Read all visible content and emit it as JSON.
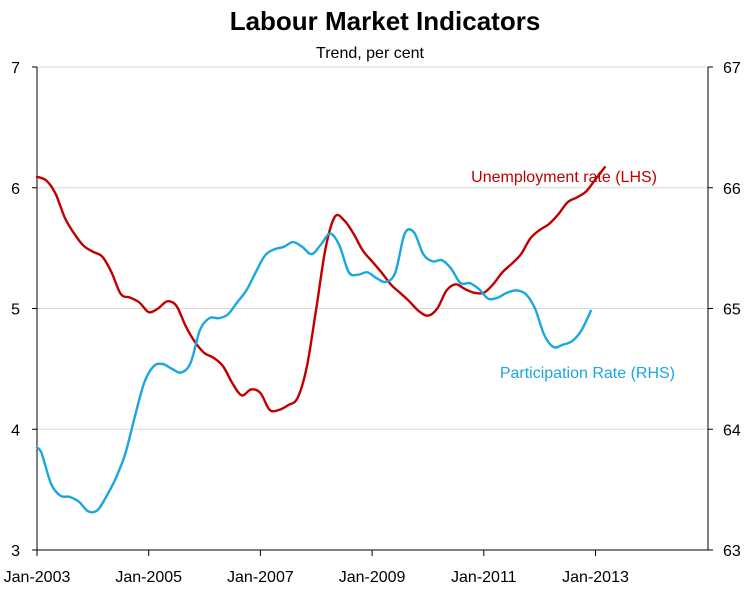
{
  "chart_data": {
    "type": "line",
    "title": "Labour Market Indicators",
    "subtitle": "Trend, per cent",
    "x_tick_labels": [
      "Jan-2003",
      "Jan-2005",
      "Jan-2007",
      "Jan-2009",
      "Jan-2011",
      "Jan-2013"
    ],
    "left_axis": {
      "ylim": [
        3,
        7
      ],
      "ticks": [
        "3",
        "4",
        "5",
        "6",
        "7"
      ]
    },
    "right_axis": {
      "ylim": [
        63,
        67
      ],
      "ticks": [
        "63",
        "64",
        "65",
        "66",
        "67"
      ]
    },
    "grid": true,
    "series": [
      {
        "name": "Unemployment rate (LHS)",
        "axis": "left",
        "color": "#C00000",
        "points": [
          [
            "2003-01",
            6.09
          ],
          [
            "2003-03",
            6.06
          ],
          [
            "2003-05",
            5.95
          ],
          [
            "2003-07",
            5.75
          ],
          [
            "2003-09",
            5.62
          ],
          [
            "2003-11",
            5.52
          ],
          [
            "2004-01",
            5.47
          ],
          [
            "2004-03",
            5.43
          ],
          [
            "2004-05",
            5.3
          ],
          [
            "2004-07",
            5.12
          ],
          [
            "2004-09",
            5.09
          ],
          [
            "2004-11",
            5.05
          ],
          [
            "2005-01",
            4.97
          ],
          [
            "2005-03",
            5.0
          ],
          [
            "2005-05",
            5.06
          ],
          [
            "2005-07",
            5.02
          ],
          [
            "2005-09",
            4.85
          ],
          [
            "2005-11",
            4.72
          ],
          [
            "2006-01",
            4.63
          ],
          [
            "2006-03",
            4.59
          ],
          [
            "2006-05",
            4.52
          ],
          [
            "2006-07",
            4.38
          ],
          [
            "2006-09",
            4.28
          ],
          [
            "2006-11",
            4.33
          ],
          [
            "2007-01",
            4.3
          ],
          [
            "2007-03",
            4.16
          ],
          [
            "2007-05",
            4.16
          ],
          [
            "2007-07",
            4.2
          ],
          [
            "2007-09",
            4.26
          ],
          [
            "2007-11",
            4.52
          ],
          [
            "2008-01",
            5.0
          ],
          [
            "2008-03",
            5.5
          ],
          [
            "2008-05",
            5.76
          ],
          [
            "2008-07",
            5.73
          ],
          [
            "2008-09",
            5.62
          ],
          [
            "2008-11",
            5.48
          ],
          [
            "2009-01",
            5.39
          ],
          [
            "2009-03",
            5.3
          ],
          [
            "2009-05",
            5.2
          ],
          [
            "2009-07",
            5.13
          ],
          [
            "2009-09",
            5.06
          ],
          [
            "2009-11",
            4.98
          ],
          [
            "2010-01",
            4.94
          ],
          [
            "2010-03",
            5.0
          ],
          [
            "2010-05",
            5.15
          ],
          [
            "2010-07",
            5.2
          ],
          [
            "2010-09",
            5.16
          ],
          [
            "2010-11",
            5.13
          ],
          [
            "2011-01",
            5.13
          ],
          [
            "2011-03",
            5.2
          ],
          [
            "2011-05",
            5.3
          ],
          [
            "2011-07",
            5.37
          ],
          [
            "2011-09",
            5.45
          ],
          [
            "2011-11",
            5.58
          ],
          [
            "2012-01",
            5.65
          ],
          [
            "2012-03",
            5.7
          ],
          [
            "2012-05",
            5.78
          ],
          [
            "2012-07",
            5.88
          ],
          [
            "2012-09",
            5.92
          ],
          [
            "2012-11",
            5.97
          ],
          [
            "2013-01",
            6.07
          ],
          [
            "2013-03",
            6.17
          ]
        ]
      },
      {
        "name": "Participation Rate (RHS)",
        "axis": "right",
        "color": "#1AA7E0",
        "points": [
          [
            "2003-01",
            63.85
          ],
          [
            "2003-02",
            63.8
          ],
          [
            "2003-04",
            63.55
          ],
          [
            "2003-06",
            63.45
          ],
          [
            "2003-08",
            63.44
          ],
          [
            "2003-10",
            63.4
          ],
          [
            "2003-12",
            63.32
          ],
          [
            "2004-02",
            63.33
          ],
          [
            "2004-04",
            63.45
          ],
          [
            "2004-06",
            63.6
          ],
          [
            "2004-08",
            63.8
          ],
          [
            "2004-10",
            64.1
          ],
          [
            "2004-12",
            64.38
          ],
          [
            "2005-02",
            64.52
          ],
          [
            "2005-04",
            64.54
          ],
          [
            "2005-06",
            64.5
          ],
          [
            "2005-08",
            64.47
          ],
          [
            "2005-10",
            64.55
          ],
          [
            "2005-12",
            64.82
          ],
          [
            "2006-02",
            64.92
          ],
          [
            "2006-04",
            64.92
          ],
          [
            "2006-06",
            64.95
          ],
          [
            "2006-08",
            65.05
          ],
          [
            "2006-10",
            65.15
          ],
          [
            "2006-12",
            65.3
          ],
          [
            "2007-02",
            65.44
          ],
          [
            "2007-04",
            65.49
          ],
          [
            "2007-06",
            65.51
          ],
          [
            "2007-08",
            65.55
          ],
          [
            "2007-10",
            65.51
          ],
          [
            "2007-12",
            65.45
          ],
          [
            "2008-02",
            65.53
          ],
          [
            "2008-04",
            65.62
          ],
          [
            "2008-06",
            65.52
          ],
          [
            "2008-08",
            65.3
          ],
          [
            "2008-10",
            65.28
          ],
          [
            "2008-12",
            65.3
          ],
          [
            "2009-02",
            65.25
          ],
          [
            "2009-04",
            65.22
          ],
          [
            "2009-06",
            65.3
          ],
          [
            "2009-08",
            65.62
          ],
          [
            "2009-10",
            65.63
          ],
          [
            "2009-12",
            65.45
          ],
          [
            "2010-02",
            65.39
          ],
          [
            "2010-04",
            65.4
          ],
          [
            "2010-06",
            65.33
          ],
          [
            "2010-08",
            65.21
          ],
          [
            "2010-10",
            65.21
          ],
          [
            "2010-12",
            65.16
          ],
          [
            "2011-02",
            65.08
          ],
          [
            "2011-04",
            65.09
          ],
          [
            "2011-06",
            65.13
          ],
          [
            "2011-08",
            65.15
          ],
          [
            "2011-10",
            65.12
          ],
          [
            "2011-12",
            65.0
          ],
          [
            "2012-02",
            64.78
          ],
          [
            "2012-04",
            64.68
          ],
          [
            "2012-06",
            64.7
          ],
          [
            "2012-08",
            64.73
          ],
          [
            "2012-10",
            64.82
          ],
          [
            "2012-12",
            64.98
          ]
        ]
      }
    ],
    "annotations": [
      {
        "series": "Unemployment rate (LHS)",
        "text": "Unemployment  rate (LHS)",
        "color": "#C00000"
      },
      {
        "series": "Participation Rate (RHS)",
        "text": "Participation Rate (RHS)",
        "color": "#1AA7E0"
      }
    ]
  }
}
